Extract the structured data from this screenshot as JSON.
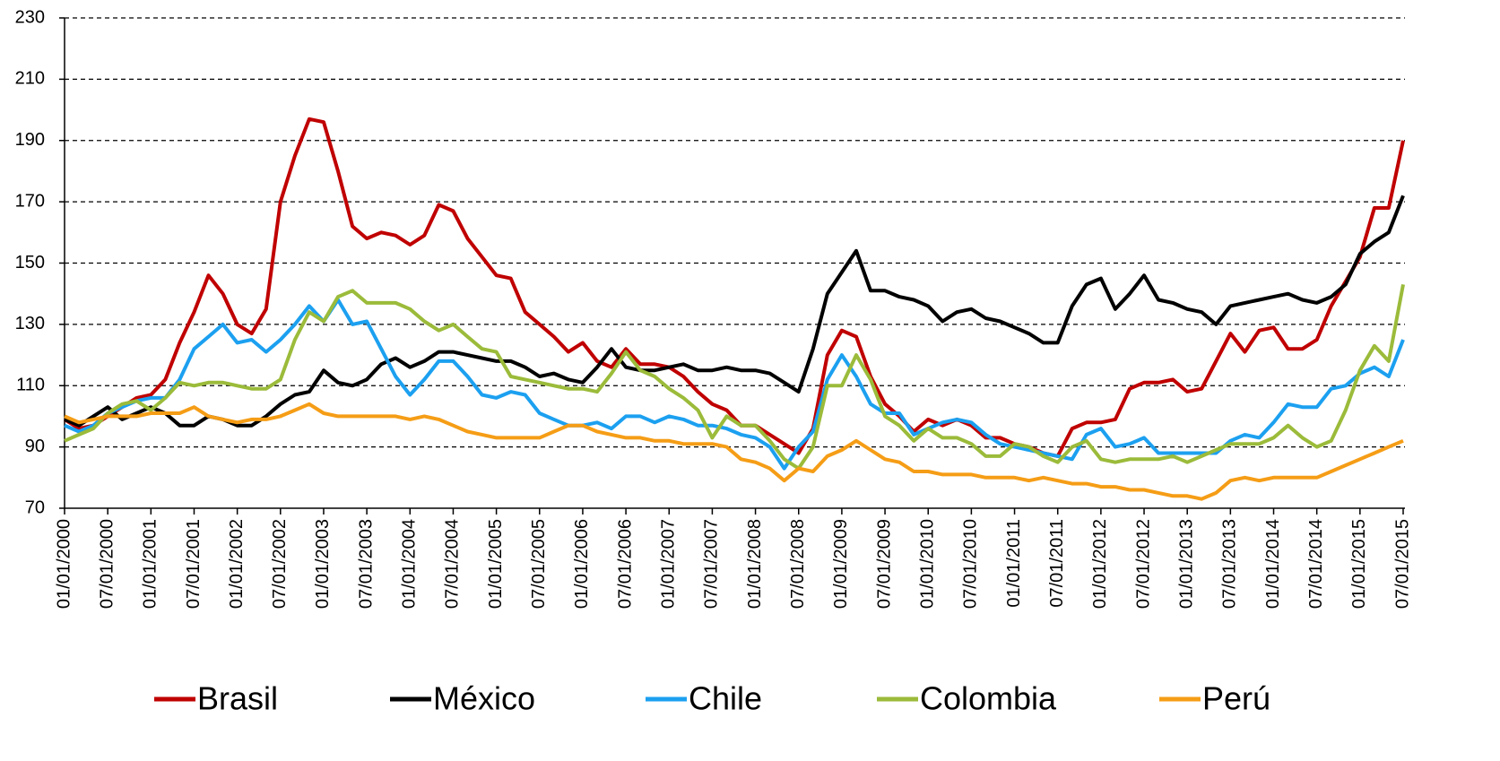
{
  "chart_data": {
    "type": "line",
    "categories": [
      "01/01/2000",
      null,
      null,
      "07/01/2000",
      null,
      null,
      "01/01/2001",
      null,
      null,
      "07/01/2001",
      null,
      null,
      "01/01/2002",
      null,
      null,
      "07/01/2002",
      null,
      null,
      "01/01/2003",
      null,
      null,
      "07/01/2003",
      null,
      null,
      "01/01/2004",
      null,
      null,
      "07/01/2004",
      null,
      null,
      "01/01/2005",
      null,
      null,
      "07/01/2005",
      null,
      null,
      "01/01/2006",
      null,
      null,
      "07/01/2006",
      null,
      null,
      "01/01/2007",
      null,
      null,
      "07/01/2007",
      null,
      null,
      "01/01/2008",
      null,
      null,
      "07/01/2008",
      null,
      null,
      "01/01/2009",
      null,
      null,
      "07/01/2009",
      null,
      null,
      "01/01/2010",
      null,
      null,
      "07/01/2010",
      null,
      null,
      "01/01/2011",
      null,
      null,
      "07/01/2011",
      null,
      null,
      "01/01/2012",
      null,
      null,
      "07/01/2012",
      null,
      null,
      "01/01/2013",
      null,
      null,
      "07/01/2013",
      null,
      null,
      "01/01/2014",
      null,
      null,
      "07/01/2014",
      null,
      null,
      "01/01/2015",
      null,
      null,
      "07/01/2015"
    ],
    "series": [
      {
        "name": "Brasil",
        "color": "#c00000",
        "values": [
          99,
          96,
          97,
          100,
          103,
          106,
          107,
          112,
          124,
          134,
          146,
          140,
          130,
          127,
          135,
          170,
          185,
          197,
          196,
          180,
          162,
          158,
          160,
          159,
          156,
          159,
          169,
          167,
          158,
          152,
          146,
          145,
          134,
          130,
          126,
          121,
          124,
          118,
          116,
          122,
          117,
          117,
          116,
          113,
          108,
          104,
          102,
          97,
          97,
          94,
          91,
          88,
          96,
          120,
          128,
          126,
          113,
          104,
          100,
          95,
          99,
          97,
          99,
          97,
          93,
          93,
          91,
          90,
          88,
          87,
          96,
          98,
          98,
          99,
          109,
          111,
          111,
          112,
          108,
          109,
          118,
          127,
          121,
          128,
          129,
          122,
          122,
          125,
          136,
          144,
          152,
          168,
          168,
          190
        ]
      },
      {
        "name": "México",
        "color": "#000000",
        "values": [
          99,
          97,
          100,
          103,
          99,
          101,
          103,
          101,
          97,
          97,
          100,
          99,
          97,
          97,
          100,
          104,
          107,
          108,
          115,
          111,
          110,
          112,
          117,
          119,
          116,
          118,
          121,
          121,
          120,
          119,
          118,
          118,
          116,
          113,
          114,
          112,
          111,
          116,
          122,
          116,
          115,
          115,
          116,
          117,
          115,
          115,
          116,
          115,
          115,
          114,
          111,
          108,
          122,
          140,
          147,
          154,
          141,
          141,
          139,
          138,
          136,
          131,
          134,
          135,
          132,
          131,
          129,
          127,
          124,
          124,
          136,
          143,
          145,
          135,
          140,
          146,
          138,
          137,
          135,
          134,
          130,
          136,
          137,
          138,
          139,
          140,
          138,
          137,
          139,
          143,
          153,
          157,
          160,
          172
        ]
      },
      {
        "name": "Chile",
        "color": "#1ca0f0",
        "values": [
          97,
          95,
          97,
          101,
          103,
          105,
          106,
          106,
          112,
          122,
          126,
          130,
          124,
          125,
          121,
          125,
          130,
          136,
          131,
          138,
          130,
          131,
          122,
          113,
          107,
          112,
          118,
          118,
          113,
          107,
          106,
          108,
          107,
          101,
          99,
          97,
          97,
          98,
          96,
          100,
          100,
          98,
          100,
          99,
          97,
          97,
          96,
          94,
          93,
          90,
          83,
          90,
          95,
          112,
          120,
          113,
          104,
          101,
          101,
          94,
          96,
          98,
          99,
          98,
          94,
          91,
          90,
          89,
          88,
          87,
          86,
          94,
          96,
          90,
          91,
          93,
          88,
          88,
          88,
          88,
          88,
          92,
          94,
          93,
          98,
          104,
          103,
          103,
          109,
          110,
          114,
          116,
          113,
          125
        ]
      },
      {
        "name": "Colombia",
        "color": "#9bbb3a",
        "values": [
          92,
          94,
          96,
          101,
          104,
          105,
          102,
          106,
          111,
          110,
          111,
          111,
          110,
          109,
          109,
          112,
          125,
          134,
          131,
          139,
          141,
          137,
          137,
          137,
          135,
          131,
          128,
          130,
          126,
          122,
          121,
          113,
          112,
          111,
          110,
          109,
          109,
          108,
          114,
          121,
          115,
          113,
          109,
          106,
          102,
          93,
          100,
          97,
          97,
          92,
          86,
          83,
          90,
          110,
          110,
          120,
          112,
          100,
          97,
          92,
          96,
          93,
          93,
          91,
          87,
          87,
          91,
          90,
          87,
          85,
          90,
          92,
          86,
          85,
          86,
          86,
          86,
          87,
          85,
          87,
          89,
          91,
          91,
          91,
          93,
          97,
          93,
          90,
          92,
          102,
          115,
          123,
          118,
          143
        ]
      },
      {
        "name": "Perú",
        "color": "#f59d16",
        "values": [
          100,
          98,
          99,
          100,
          100,
          100,
          101,
          101,
          101,
          103,
          100,
          99,
          98,
          99,
          99,
          100,
          102,
          104,
          101,
          100,
          100,
          100,
          100,
          100,
          99,
          100,
          99,
          97,
          95,
          94,
          93,
          93,
          93,
          93,
          95,
          97,
          97,
          95,
          94,
          93,
          93,
          92,
          92,
          91,
          91,
          91,
          90,
          86,
          85,
          83,
          79,
          83,
          82,
          87,
          89,
          92,
          89,
          86,
          85,
          82,
          82,
          81,
          81,
          81,
          80,
          80,
          80,
          79,
          80,
          79,
          78,
          78,
          77,
          77,
          76,
          76,
          75,
          74,
          74,
          73,
          75,
          79,
          80,
          79,
          80,
          80,
          80,
          80,
          82,
          84,
          86,
          88,
          90,
          92
        ]
      }
    ],
    "ylim": [
      70,
      230
    ],
    "yticks": [
      70,
      90,
      110,
      130,
      150,
      170,
      190,
      210,
      230
    ],
    "grid": true,
    "legend": "bottom"
  }
}
